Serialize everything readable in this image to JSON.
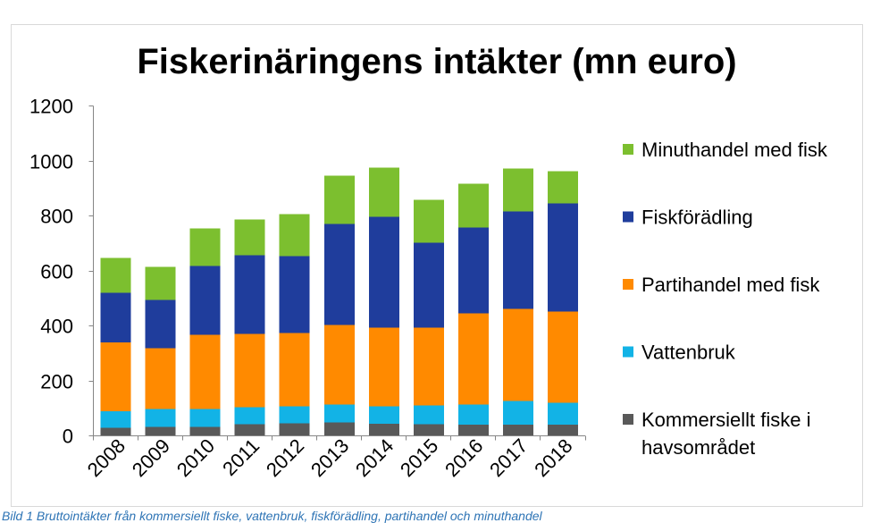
{
  "chart_data": {
    "type": "bar",
    "stacked": true,
    "title": "Fiskerinäringens intäkter (mn euro)",
    "categories": [
      "2008",
      "2009",
      "2010",
      "2011",
      "2012",
      "2013",
      "2014",
      "2015",
      "2016",
      "2017",
      "2018"
    ],
    "series": [
      {
        "name": "Kommersiellt fiske i havsområdet",
        "color": "#595959",
        "values": [
          30,
          32,
          33,
          42,
          46,
          48,
          44,
          42,
          40,
          40,
          40
        ]
      },
      {
        "name": "Vattenbruk",
        "color": "#12B3E6",
        "values": [
          60,
          65,
          64,
          62,
          61,
          66,
          63,
          69,
          74,
          87,
          80
        ]
      },
      {
        "name": "Partihandel med fisk",
        "color": "#FF8A00",
        "values": [
          250,
          222,
          270,
          267,
          267,
          289,
          286,
          282,
          331,
          335,
          332
        ]
      },
      {
        "name": "Fiskförädling",
        "color": "#1F3D9C",
        "values": [
          180,
          175,
          251,
          286,
          280,
          368,
          404,
          309,
          313,
          354,
          394
        ]
      },
      {
        "name": "Minuthandel med fisk",
        "color": "#7CBF2F",
        "values": [
          127,
          121,
          137,
          130,
          153,
          175,
          178,
          156,
          159,
          156,
          117
        ]
      }
    ],
    "ylim": [
      0,
      1200
    ],
    "yticks": [
      0,
      200,
      400,
      600,
      800,
      1000,
      1200
    ],
    "grid": false,
    "legend": "right"
  },
  "caption": "Bild 1 Bruttointäkter från kommersiellt fiske, vattenbruk, fiskförädling, partihandel och minuthandel"
}
